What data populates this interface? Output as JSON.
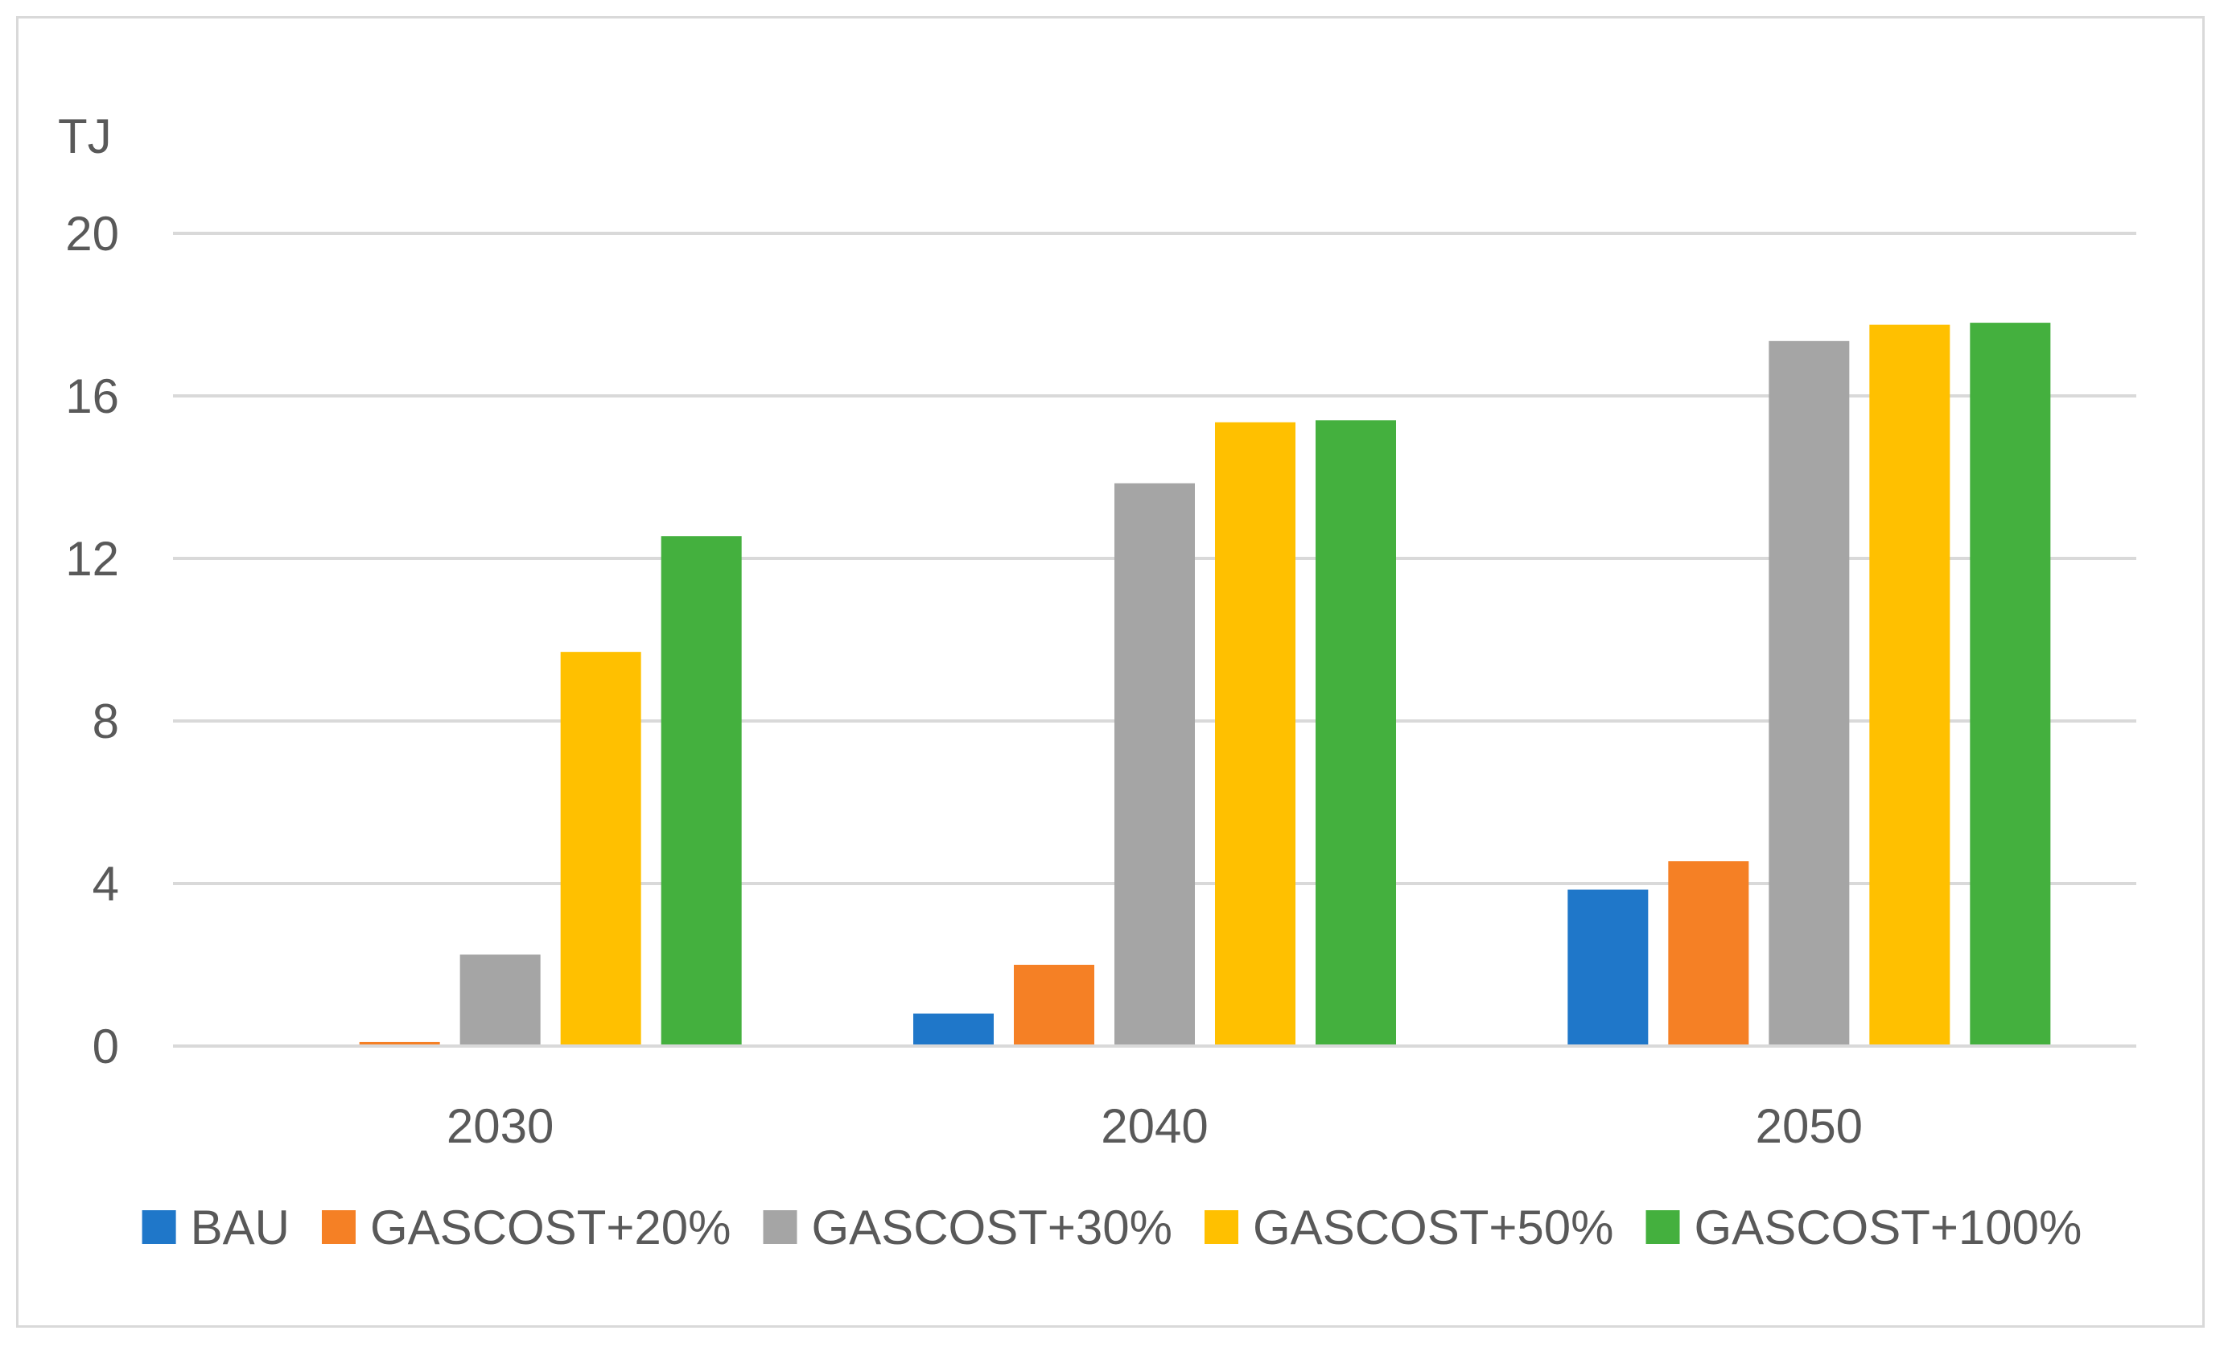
{
  "chart_data": {
    "type": "bar",
    "title": "",
    "xlabel": "",
    "ylabel": "TJ",
    "ylim": [
      0,
      20
    ],
    "yticks": [
      "0",
      "4",
      "8",
      "12",
      "16",
      "20"
    ],
    "grid": true,
    "legend_position": "bottom",
    "categories": [
      "2030",
      "2040",
      "2050"
    ],
    "series": [
      {
        "name": "BAU",
        "color": "#1f77c9",
        "values": [
          0,
          0.8,
          3.85
        ]
      },
      {
        "name": "GASCOST+20%",
        "color": "#f58025",
        "values": [
          0.1,
          2.0,
          4.55
        ]
      },
      {
        "name": "GASCOST+30%",
        "color": "#a5a5a5",
        "values": [
          2.25,
          13.85,
          17.35
        ]
      },
      {
        "name": "GASCOST+50%",
        "color": "#ffc000",
        "values": [
          9.7,
          15.35,
          17.75
        ]
      },
      {
        "name": "GASCOST+100%",
        "color": "#44b03e",
        "values": [
          12.55,
          15.4,
          17.8
        ]
      }
    ]
  }
}
